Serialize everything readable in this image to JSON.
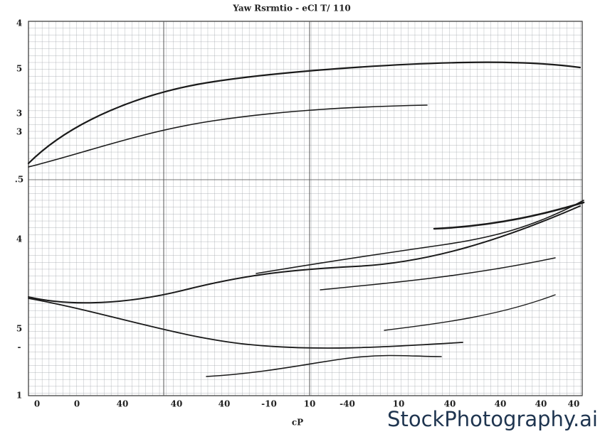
{
  "title": "Yaw Rsrmtio - eCl T/ 110",
  "y_labels": [
    "4",
    "5",
    "3",
    "3",
    ".5",
    "4",
    "5",
    "-",
    "1"
  ],
  "x_labels": [
    "0",
    "0",
    "40",
    "40",
    "40",
    "-10",
    "10",
    "-40",
    "10",
    "40",
    "40",
    "40",
    "40"
  ],
  "x_axis_label": "cP",
  "watermark": "StockPhotography.ai"
}
